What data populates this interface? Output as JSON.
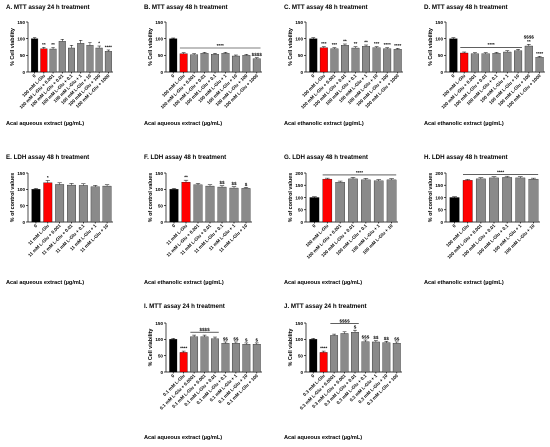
{
  "colors": {
    "control": "#000000",
    "glutamate": "#ff0000",
    "extract": "#8a8a8a"
  },
  "chart_data": [
    {
      "type": "bar",
      "title": "A. MTT assay 24 h treatment",
      "ylabel": "% Cell viability",
      "xlabel": "Acai aqueous extract (µg/mL)",
      "ylim": [
        0,
        150
      ],
      "yticks": [
        0,
        50,
        100,
        150
      ],
      "categories": [
        "0",
        "100 mM L-Glu",
        "100 mM L-Glu + 0.001",
        "100 mM L-Glu + 0.01",
        "100 mM L-Glu + 0.1",
        "100 mM L-Glu + 1",
        "100 mM L-Glu + 10",
        "100 mM L-Glu + 100",
        "100 mM L-Glu + 1000"
      ],
      "values": [
        100,
        70,
        69,
        92,
        72,
        86,
        80,
        72,
        62
      ],
      "errors": [
        3,
        4,
        4,
        6,
        8,
        9,
        8,
        6,
        4
      ],
      "marks": [
        [],
        [
          "**"
        ],
        [
          "**"
        ],
        [],
        [],
        [],
        [],
        [
          "*"
        ],
        [
          "****"
        ]
      ],
      "lines": []
    },
    {
      "type": "bar",
      "title": "B. MTT assay 48 h treatment",
      "ylabel": "% Cell viability",
      "xlabel": "Acai aqueous extract (µg/mL)",
      "ylim": [
        0,
        150
      ],
      "yticks": [
        0,
        50,
        100,
        150
      ],
      "categories": [
        "0",
        "100 mM L-Glu",
        "100 mM L-Glu + 0.001",
        "100 mM L-Glu + 0.01",
        "100 mM L-Glu + 0.1",
        "100 mM L-Glu + 1",
        "100 mM L-Glu + 10",
        "100 mM L-Glu + 100",
        "100 mM L-Glu + 1000"
      ],
      "values": [
        100,
        55,
        52,
        56,
        53,
        56,
        48,
        50,
        40
      ],
      "errors": [
        2,
        3,
        3,
        3,
        3,
        3,
        3,
        3,
        3
      ],
      "marks": [
        [],
        [],
        [],
        [],
        [],
        [],
        [],
        [],
        [
          "$$$$"
        ]
      ],
      "lines": [
        {
          "from": 1,
          "to": 8,
          "level": 72,
          "text": "****"
        }
      ]
    },
    {
      "type": "bar",
      "title": "C. MTT assay 48 h treatment",
      "ylabel": "% Cell viability",
      "xlabel": "Acai ethanolic extract (µg/mL)",
      "ylim": [
        0,
        150
      ],
      "yticks": [
        0,
        50,
        100,
        150
      ],
      "categories": [
        "0",
        "100 mM L-Glu",
        "100 mM L-Glu + 0.001",
        "100 mM L-Glu + 0.01",
        "100 mM L-Glu + 0.1",
        "100 mM L-Glu + 1",
        "100 mM L-Glu + 10",
        "100 mM L-Glu + 100",
        "100 mM L-Glu + 1000"
      ],
      "values": [
        100,
        73,
        70,
        80,
        72,
        77,
        73,
        70,
        68
      ],
      "errors": [
        3,
        3,
        3,
        4,
        4,
        4,
        3,
        3,
        3
      ],
      "marks": [
        [],
        [
          "***"
        ],
        [
          "***"
        ],
        [
          "**"
        ],
        [
          "**"
        ],
        [
          "**"
        ],
        [
          "***"
        ],
        [
          "****"
        ],
        [
          "****"
        ]
      ],
      "lines": []
    },
    {
      "type": "bar",
      "title": "D. MTT assay 48 h treatment",
      "ylabel": "% Cell viability",
      "xlabel": "Acai ethanolic extract (µg/mL)",
      "ylim": [
        0,
        150
      ],
      "yticks": [
        0,
        50,
        100,
        150
      ],
      "categories": [
        "0",
        "100 mM L-Glu",
        "100 mM L-Glu + 0.001",
        "100 mM L-Glu + 0.01",
        "100 mM L-Glu + 0.1",
        "100 mM L-Glu + 1",
        "100 mM L-Glu + 10",
        "100 mM L-Glu + 100",
        "100 mM L-Glu + 1000"
      ],
      "values": [
        100,
        57,
        55,
        55,
        56,
        60,
        64,
        78,
        44
      ],
      "errors": [
        3,
        3,
        3,
        3,
        3,
        4,
        4,
        5,
        3
      ],
      "marks": [
        [],
        [],
        [],
        [],
        [],
        [],
        [],
        [
          "**",
          "$$$$"
        ],
        [
          "****"
        ]
      ],
      "lines": [
        {
          "from": 1,
          "to": 6,
          "level": 74,
          "text": "****"
        }
      ]
    },
    {
      "type": "bar",
      "title": "E. LDH assay 48 h treatment",
      "ylabel": "% of control values",
      "xlabel": "Acai aqueous extract (µg/mL)",
      "ylim": [
        0,
        150
      ],
      "yticks": [
        0,
        50,
        100,
        150
      ],
      "categories": [
        "0",
        "11 mM L-Glu",
        "11 mM L-Glu + 0.001",
        "11 mM L-Glu + 0.01",
        "11 mM L-Glu + 0.1",
        "11 mM L-Glu + 1",
        "11 mM L-Glu + 10"
      ],
      "values": [
        100,
        120,
        115,
        113,
        112,
        108,
        110
      ],
      "errors": [
        3,
        7,
        5,
        5,
        5,
        4,
        4
      ],
      "marks": [
        [],
        [
          "*"
        ],
        [],
        [],
        [],
        [],
        []
      ],
      "lines": []
    },
    {
      "type": "bar",
      "title": "F. LDH assay 48 h treatment",
      "ylabel": "% of control values",
      "xlabel": "Acai ethanolic extract (µg/mL)",
      "ylim": [
        0,
        150
      ],
      "yticks": [
        0,
        50,
        100,
        150
      ],
      "categories": [
        "0",
        "11 mM L-Glu",
        "11 mM L-Glu + 0.001",
        "11 mM L-Glu + 0.01",
        "11 mM L-Glu + 0.1",
        "11 mM L-Glu + 1",
        "11 mM L-Glu + 10"
      ],
      "values": [
        100,
        122,
        114,
        110,
        107,
        104,
        103
      ],
      "errors": [
        3,
        6,
        4,
        4,
        4,
        4,
        3
      ],
      "marks": [
        [],
        [
          "**"
        ],
        [],
        [],
        [
          "$$"
        ],
        [
          "$$"
        ],
        [
          "$"
        ]
      ],
      "lines": []
    },
    {
      "type": "bar",
      "title": "G. LDH assay 48 h treatment",
      "ylabel": "% of control values",
      "xlabel": "Acai aqueous extract (µg/mL)",
      "ylim": [
        0,
        200
      ],
      "yticks": [
        0,
        50,
        100,
        150,
        200
      ],
      "categories": [
        "0",
        "100 mM L-Glu",
        "100 mM L-Glu + 0.001",
        "100 mM L-Glu + 0.01",
        "100 mM L-Glu + 0.1",
        "100 mM L-Glu + 1",
        "100 mM L-Glu + 10"
      ],
      "values": [
        100,
        175,
        162,
        176,
        172,
        168,
        172
      ],
      "errors": [
        3,
        4,
        5,
        6,
        6,
        5,
        5
      ],
      "marks": [
        [],
        [],
        [],
        [],
        [],
        [],
        []
      ],
      "lines": [
        {
          "from": 1,
          "to": 6,
          "level": 192,
          "text": "****"
        }
      ]
    },
    {
      "type": "bar",
      "title": "H. LDH assay 48 h treatment",
      "ylabel": "% of control values",
      "xlabel": "Acai ethanolic extract (µg/mL)",
      "ylim": [
        0,
        200
      ],
      "yticks": [
        0,
        50,
        100,
        150,
        200
      ],
      "categories": [
        "0",
        "100 mM L-Glu",
        "100 mM L-Glu + 0.001",
        "100 mM L-Glu + 0.01",
        "100 mM L-Glu + 0.1",
        "100 mM L-Glu + 1",
        "100 mM L-Glu + 10"
      ],
      "values": [
        100,
        170,
        176,
        180,
        182,
        180,
        175
      ],
      "errors": [
        3,
        4,
        5,
        5,
        5,
        5,
        4
      ],
      "marks": [
        [],
        [],
        [],
        [],
        [],
        [],
        []
      ],
      "lines": [
        {
          "from": 1,
          "to": 6,
          "level": 194,
          "text": "****"
        }
      ]
    },
    {
      "type": "bar",
      "title": "I. MTT assay 24 h treatment",
      "ylabel": "% Cell viability",
      "xlabel": "Acai aqueous extract (µg/mL)",
      "ylim": [
        0,
        150
      ],
      "yticks": [
        0,
        50,
        100,
        150
      ],
      "categories": [
        "0",
        "0.1 mM L-Glu",
        "0.1 mM L-Glu + 0.0001",
        "0.1 mM L-Glu + 0.001",
        "0.1 mM L-Glu + 0.01",
        "0.1 mM L-Glu + 0.1",
        "0.1 mM L-Glu + 1",
        "0.1 mM L-Glu + 10",
        "0.1 mM L-Glu + 100"
      ],
      "values": [
        100,
        60,
        108,
        108,
        102,
        88,
        88,
        85,
        85
      ],
      "errors": [
        3,
        4,
        5,
        5,
        5,
        4,
        4,
        4,
        4
      ],
      "marks": [
        [],
        [
          "****"
        ],
        [],
        [],
        [],
        [
          "$$"
        ],
        [
          "$$"
        ],
        [
          "$"
        ],
        [
          "$"
        ]
      ],
      "lines": [
        {
          "from": 2,
          "to": 4,
          "level": 122,
          "text": "$$$$"
        }
      ]
    },
    {
      "type": "bar",
      "title": "J. MTT assay 24 h treatment",
      "ylabel": "% Cell viability",
      "xlabel": "Acai aqueous extract (µg/mL)",
      "ylim": [
        0,
        150
      ],
      "yticks": [
        0,
        50,
        100,
        150
      ],
      "categories": [
        "0",
        "0.3 mM L-Glu",
        "0.3 mM L-Glu + 0.0001",
        "0.3 mM L-Glu + 0.001",
        "0.3 mM L-Glu + 0.01",
        "0.3 mM L-Glu + 0.1",
        "0.3 mM L-Glu + 1",
        "0.3 mM L-Glu + 10",
        "0.3 mM L-Glu + 100"
      ],
      "values": [
        100,
        60,
        112,
        118,
        122,
        93,
        92,
        90,
        88
      ],
      "errors": [
        3,
        4,
        4,
        5,
        6,
        5,
        4,
        4,
        4
      ],
      "marks": [
        [],
        [
          "****"
        ],
        [],
        [],
        [
          "$"
        ],
        [
          "$$$"
        ],
        [
          "$$"
        ],
        [
          "$$"
        ],
        [
          "$$"
        ]
      ],
      "lines": [
        {
          "from": 2,
          "to": 4,
          "level": 148,
          "text": "$$$$"
        }
      ]
    }
  ]
}
